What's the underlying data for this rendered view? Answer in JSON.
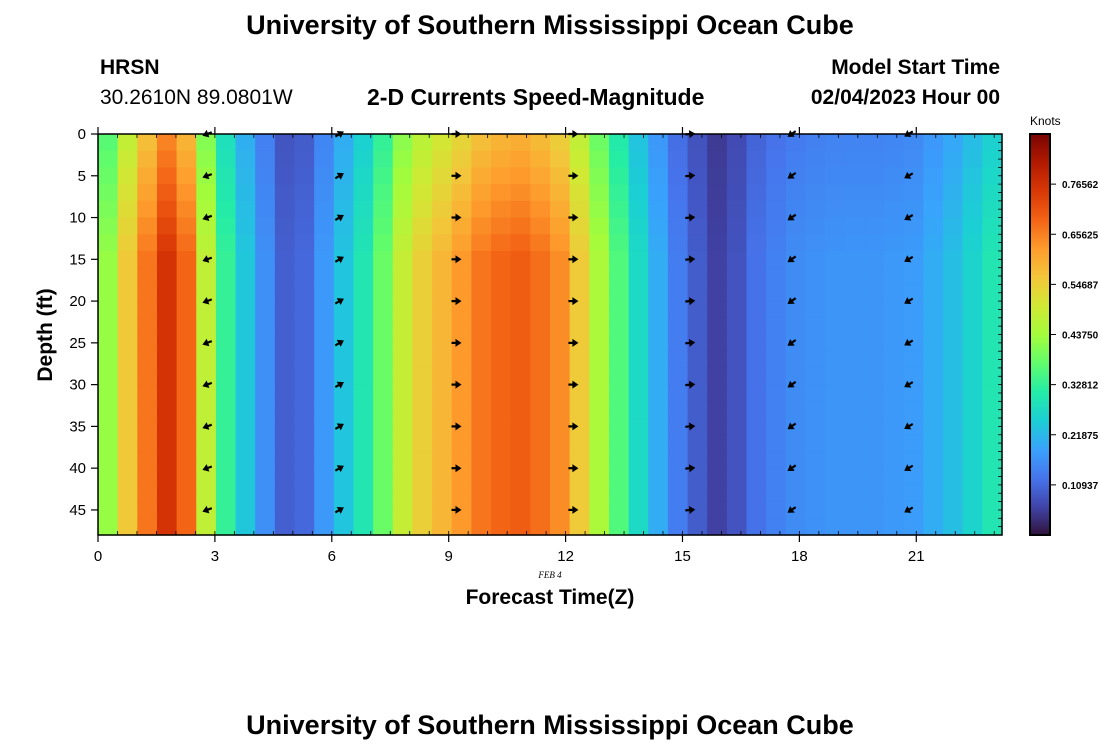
{
  "page": {
    "title": "University of Southern Mississippi Ocean Cube",
    "station": "HRSN",
    "coords": "30.2610N  89.0801W",
    "subtitle": "2-D Currents Speed-Magnitude",
    "model_label": "Model Start Time",
    "model_time": "02/04/2023 Hour 00",
    "date_label": "FEB 4",
    "second_title": "University of Southern Mississippi Ocean Cube"
  },
  "chart_data": {
    "type": "heatmap",
    "title": "2-D Currents Speed-Magnitude",
    "xlabel": "Forecast Time(Z)",
    "ylabel": "Depth (ft)",
    "xlim": [
      0,
      23.2
    ],
    "ylim": [
      0,
      48
    ],
    "x_ticks": [
      0,
      3,
      6,
      9,
      12,
      15,
      18,
      21
    ],
    "y_ticks": [
      0,
      5,
      10,
      15,
      20,
      25,
      30,
      35,
      40,
      45
    ],
    "colorbar": {
      "label": "Knots",
      "range": [
        0,
        0.875
      ],
      "ticks": [
        "0.76562",
        "0.65625",
        "0.54687",
        "0.43750",
        "0.32812",
        "0.21875",
        "0.10937"
      ],
      "tick_values": [
        0.76562,
        0.65625,
        0.54687,
        0.4375,
        0.32812,
        0.21875,
        0.10937
      ],
      "colormap": "turbo"
    },
    "speed_profile_by_hour": {
      "hours": [
        0,
        1,
        2,
        3,
        4,
        5,
        6,
        7,
        8,
        9,
        10,
        11,
        12,
        13,
        14,
        15,
        16,
        17,
        18,
        19,
        20,
        21,
        22,
        23
      ],
      "speed_knots": [
        0.36,
        0.62,
        0.8,
        0.38,
        0.2,
        0.07,
        0.2,
        0.32,
        0.52,
        0.6,
        0.68,
        0.7,
        0.63,
        0.42,
        0.25,
        0.12,
        0.05,
        0.13,
        0.16,
        0.17,
        0.17,
        0.18,
        0.23,
        0.3
      ]
    },
    "vectors": {
      "x_hours": [
        2.8,
        6.2,
        9.2,
        12.2,
        15.2,
        17.8,
        20.8
      ],
      "depths_ft": [
        0,
        5,
        10,
        15,
        20,
        25,
        30,
        35,
        40,
        45
      ],
      "direction_deg": [
        200,
        30,
        0,
        0,
        5,
        215,
        210
      ],
      "direction_convention": "screen angle, 0 = pointing right (+x), positive = counter-clockwise"
    }
  }
}
